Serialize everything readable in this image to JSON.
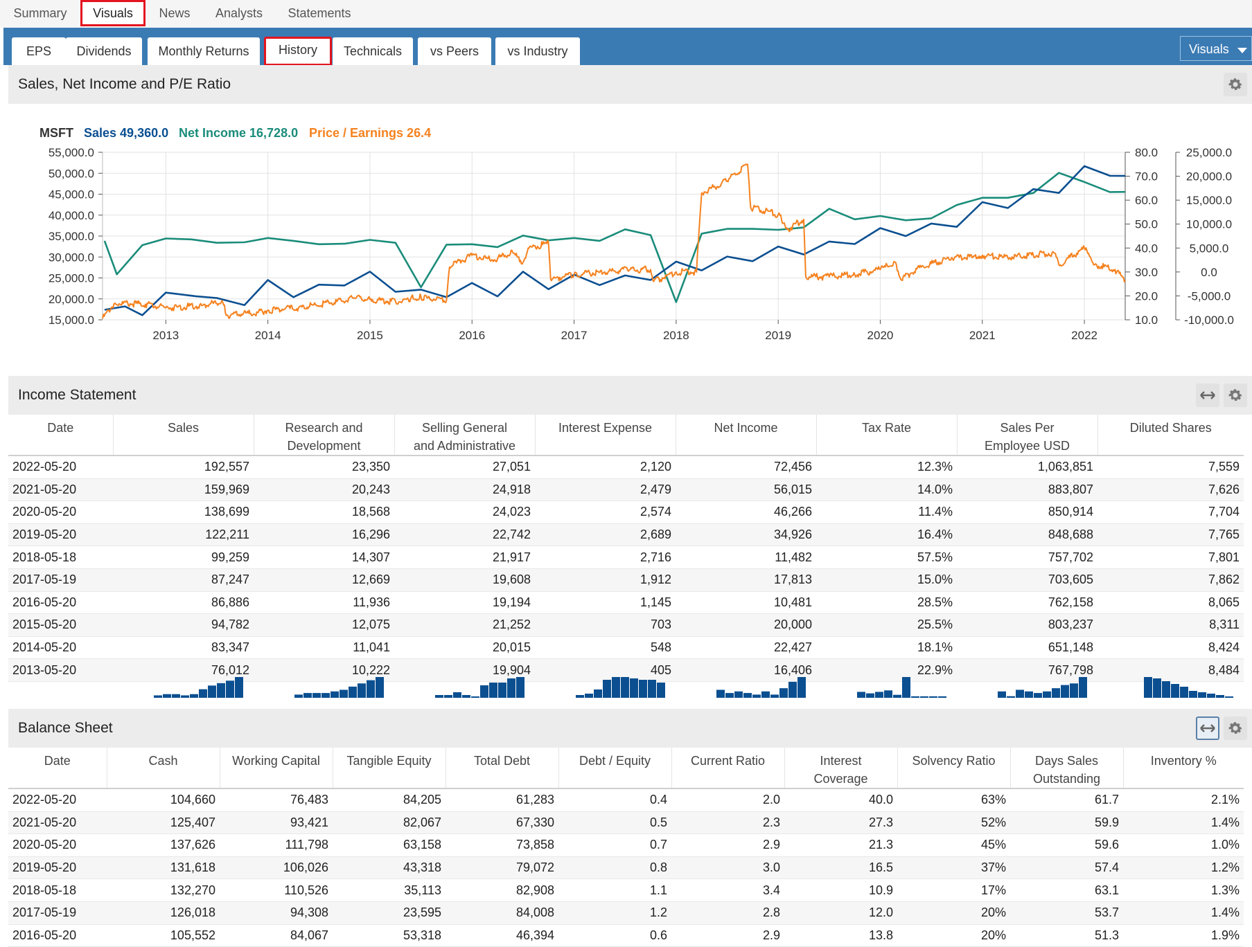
{
  "top_nav": [
    "Summary",
    "Visuals",
    "News",
    "Analysts",
    "Statements"
  ],
  "sub_tabs": [
    "EPS",
    "Dividends",
    "Monthly Returns",
    "History",
    "Technicals",
    "vs Peers",
    "vs Industry"
  ],
  "visuals_dropdown": "Visuals",
  "chart_section": {
    "title": "Sales, Net Income and P/E Ratio"
  },
  "legend": {
    "ticker": "MSFT",
    "sales": "Sales 49,360.0",
    "net_income": "Net Income 16,728.0",
    "pe": "Price / Earnings 26.4"
  },
  "colors": {
    "sales": "#0b4f91",
    "net_income": "#1a8c7a",
    "pe": "#f5821f",
    "accent": "#3b7bb4",
    "highlight": "#e3141f"
  },
  "chart_data": {
    "type": "line",
    "x_ticks": [
      "2013",
      "2014",
      "2015",
      "2016",
      "2017",
      "2018",
      "2019",
      "2020",
      "2021",
      "2022"
    ],
    "y_left_ticks": [
      "55,000.0",
      "50,000.0",
      "45,000.0",
      "40,000.0",
      "35,000.0",
      "30,000.0",
      "25,000.0",
      "20,000.0",
      "15,000.0"
    ],
    "y_right1_ticks": [
      "80.0",
      "70.0",
      "60.0",
      "50.0",
      "40.0",
      "30.0",
      "20.0",
      "10.0"
    ],
    "y_right2_ticks": [
      "25,000.0",
      "20,000.0",
      "15,000.0",
      "10,000.0",
      "5,000.0",
      "0.0",
      "-5,000.0",
      "-10,000.0"
    ],
    "ylim_left": [
      15000,
      55000
    ],
    "ylim_pe": [
      10,
      80
    ],
    "ylim_net": [
      -10000,
      25000
    ],
    "xlim": [
      2012.38,
      2022.4
    ],
    "sales": [
      [
        2012.4,
        17400
      ],
      [
        2012.6,
        18200
      ],
      [
        2012.77,
        16100
      ],
      [
        2013.0,
        21500
      ],
      [
        2013.3,
        20600
      ],
      [
        2013.5,
        20200
      ],
      [
        2013.77,
        18500
      ],
      [
        2014.0,
        24500
      ],
      [
        2014.25,
        20400
      ],
      [
        2014.5,
        23400
      ],
      [
        2014.75,
        23200
      ],
      [
        2015.0,
        26500
      ],
      [
        2015.25,
        21700
      ],
      [
        2015.5,
        22200
      ],
      [
        2015.75,
        20400
      ],
      [
        2016.0,
        23800
      ],
      [
        2016.25,
        20600
      ],
      [
        2016.5,
        26500
      ],
      [
        2016.75,
        22300
      ],
      [
        2017.0,
        25800
      ],
      [
        2017.25,
        23300
      ],
      [
        2017.5,
        25600
      ],
      [
        2017.75,
        24500
      ],
      [
        2018.0,
        28900
      ],
      [
        2018.25,
        26800
      ],
      [
        2018.5,
        30100
      ],
      [
        2018.75,
        29000
      ],
      [
        2019.0,
        32500
      ],
      [
        2019.25,
        30600
      ],
      [
        2019.5,
        33700
      ],
      [
        2019.75,
        33100
      ],
      [
        2020.0,
        36900
      ],
      [
        2020.25,
        35000
      ],
      [
        2020.5,
        38000
      ],
      [
        2020.75,
        37200
      ],
      [
        2021.0,
        43100
      ],
      [
        2021.25,
        41700
      ],
      [
        2021.5,
        46200
      ],
      [
        2021.75,
        45300
      ],
      [
        2022.0,
        51700
      ],
      [
        2022.25,
        49400
      ],
      [
        2022.4,
        49360
      ]
    ],
    "net_income": [
      [
        2012.4,
        6500
      ],
      [
        2012.52,
        -500
      ],
      [
        2012.77,
        5600
      ],
      [
        2013.0,
        7000
      ],
      [
        2013.25,
        6800
      ],
      [
        2013.5,
        6100
      ],
      [
        2013.77,
        6200
      ],
      [
        2014.0,
        7100
      ],
      [
        2014.25,
        6500
      ],
      [
        2014.5,
        5800
      ],
      [
        2014.75,
        5900
      ],
      [
        2015.0,
        6700
      ],
      [
        2015.25,
        6100
      ],
      [
        2015.5,
        -3200
      ],
      [
        2015.75,
        5700
      ],
      [
        2016.0,
        5800
      ],
      [
        2016.25,
        5200
      ],
      [
        2016.5,
        7600
      ],
      [
        2016.75,
        6600
      ],
      [
        2017.0,
        7100
      ],
      [
        2017.25,
        6500
      ],
      [
        2017.5,
        8900
      ],
      [
        2017.75,
        7700
      ],
      [
        2018.0,
        -6300
      ],
      [
        2018.25,
        8000
      ],
      [
        2018.5,
        9000
      ],
      [
        2018.75,
        9000
      ],
      [
        2019.0,
        8800
      ],
      [
        2019.25,
        9300
      ],
      [
        2019.5,
        13200
      ],
      [
        2019.75,
        11000
      ],
      [
        2020.0,
        11700
      ],
      [
        2020.25,
        10800
      ],
      [
        2020.5,
        11200
      ],
      [
        2020.75,
        14000
      ],
      [
        2021.0,
        15500
      ],
      [
        2021.25,
        15500
      ],
      [
        2021.5,
        16500
      ],
      [
        2021.75,
        20700
      ],
      [
        2022.0,
        18800
      ],
      [
        2022.25,
        16700
      ],
      [
        2022.4,
        16728
      ]
    ],
    "pe": [
      [
        2012.38,
        10.5
      ],
      [
        2012.5,
        17
      ],
      [
        2012.8,
        16.5
      ],
      [
        2013.0,
        15
      ],
      [
        2013.4,
        16
      ],
      [
        2013.55,
        18
      ],
      [
        2013.6,
        12
      ],
      [
        2013.9,
        13
      ],
      [
        2014.0,
        14
      ],
      [
        2014.3,
        15
      ],
      [
        2014.6,
        17
      ],
      [
        2014.85,
        19
      ],
      [
        2015.0,
        18.5
      ],
      [
        2015.3,
        17.5
      ],
      [
        2015.4,
        19
      ],
      [
        2015.5,
        19.5
      ],
      [
        2015.75,
        18
      ],
      [
        2015.78,
        32
      ],
      [
        2016.0,
        37
      ],
      [
        2016.2,
        35
      ],
      [
        2016.4,
        38
      ],
      [
        2016.5,
        34
      ],
      [
        2016.55,
        40
      ],
      [
        2016.75,
        42
      ],
      [
        2016.77,
        27
      ],
      [
        2017.0,
        29
      ],
      [
        2017.3,
        30
      ],
      [
        2017.55,
        31
      ],
      [
        2017.75,
        31
      ],
      [
        2017.78,
        26
      ],
      [
        2018.0,
        30
      ],
      [
        2018.2,
        30
      ],
      [
        2018.25,
        63
      ],
      [
        2018.5,
        68
      ],
      [
        2018.7,
        75
      ],
      [
        2018.73,
        57
      ],
      [
        2019.0,
        54
      ],
      [
        2019.1,
        48
      ],
      [
        2019.25,
        52
      ],
      [
        2019.27,
        28
      ],
      [
        2019.5,
        28
      ],
      [
        2019.75,
        29
      ],
      [
        2020.0,
        31
      ],
      [
        2020.15,
        34
      ],
      [
        2020.2,
        27
      ],
      [
        2020.4,
        32
      ],
      [
        2020.7,
        36
      ],
      [
        2020.9,
        36
      ],
      [
        2021.0,
        37
      ],
      [
        2021.2,
        36
      ],
      [
        2021.5,
        37
      ],
      [
        2021.7,
        38
      ],
      [
        2021.75,
        33
      ],
      [
        2022.0,
        40
      ],
      [
        2022.1,
        33
      ],
      [
        2022.3,
        31
      ],
      [
        2022.4,
        26.4
      ]
    ]
  },
  "income_statement": {
    "title": "Income Statement",
    "columns": [
      [
        "Date"
      ],
      [
        "Sales"
      ],
      [
        "Research and",
        "Development"
      ],
      [
        "Selling General",
        "and Administrative"
      ],
      [
        "Interest Expense"
      ],
      [
        "Net Income"
      ],
      [
        "Tax Rate"
      ],
      [
        "Sales Per",
        "Employee USD"
      ],
      [
        "Diluted Shares"
      ]
    ],
    "rows": [
      [
        "2022-05-20",
        "192,557",
        "23,350",
        "27,051",
        "2,120",
        "72,456",
        "12.3%",
        "1,063,851",
        "7,559"
      ],
      [
        "2021-05-20",
        "159,969",
        "20,243",
        "24,918",
        "2,479",
        "56,015",
        "14.0%",
        "883,807",
        "7,626"
      ],
      [
        "2020-05-20",
        "138,699",
        "18,568",
        "24,023",
        "2,574",
        "46,266",
        "11.4%",
        "850,914",
        "7,704"
      ],
      [
        "2019-05-20",
        "122,211",
        "16,296",
        "22,742",
        "2,689",
        "34,926",
        "16.4%",
        "848,688",
        "7,765"
      ],
      [
        "2018-05-18",
        "99,259",
        "14,307",
        "21,917",
        "2,716",
        "11,482",
        "57.5%",
        "757,702",
        "7,801"
      ],
      [
        "2017-05-19",
        "87,247",
        "12,669",
        "19,608",
        "1,912",
        "17,813",
        "15.0%",
        "703,605",
        "7,862"
      ],
      [
        "2016-05-20",
        "86,886",
        "11,936",
        "19,194",
        "1,145",
        "10,481",
        "28.5%",
        "762,158",
        "8,065"
      ],
      [
        "2015-05-20",
        "94,782",
        "12,075",
        "21,252",
        "703",
        "20,000",
        "25.5%",
        "803,237",
        "8,311"
      ],
      [
        "2014-05-20",
        "83,347",
        "11,041",
        "20,015",
        "548",
        "22,427",
        "18.1%",
        "651,148",
        "8,424"
      ],
      [
        "2013-05-20",
        "76,012",
        "10,222",
        "19,904",
        "405",
        "16,406",
        "22.9%",
        "767,798",
        "8,484"
      ]
    ],
    "sparks": [
      [
        2,
        3,
        3,
        2,
        3,
        7,
        10,
        12,
        14,
        17
      ],
      [
        2,
        3,
        3,
        3,
        4,
        5,
        7,
        9,
        11,
        13
      ],
      [
        2,
        2,
        4,
        2,
        1,
        9,
        11,
        11,
        14,
        15
      ],
      [
        2,
        3,
        6,
        13,
        15,
        15,
        14,
        13,
        13,
        11
      ],
      [
        5,
        3,
        4,
        3,
        2,
        4,
        2,
        6,
        10,
        13
      ],
      [
        4,
        3,
        4,
        5,
        2,
        14,
        1,
        1,
        1,
        1
      ],
      [
        4,
        1,
        5,
        4,
        3,
        4,
        6,
        8,
        9,
        13
      ],
      [
        15,
        14,
        12,
        10,
        8,
        5,
        4,
        3,
        2,
        1
      ]
    ]
  },
  "balance_sheet": {
    "title": "Balance Sheet",
    "columns": [
      [
        "Date"
      ],
      [
        "Cash"
      ],
      [
        "Working Capital"
      ],
      [
        "Tangible Equity"
      ],
      [
        "Total Debt"
      ],
      [
        "Debt / Equity"
      ],
      [
        "Current Ratio"
      ],
      [
        "Interest",
        "Coverage"
      ],
      [
        "Solvency Ratio"
      ],
      [
        "Days Sales",
        "Outstanding"
      ],
      [
        "Inventory %"
      ]
    ],
    "rows": [
      [
        "2022-05-20",
        "104,660",
        "76,483",
        "84,205",
        "61,283",
        "0.4",
        "2.0",
        "40.0",
        "63%",
        "61.7",
        "2.1%"
      ],
      [
        "2021-05-20",
        "125,407",
        "93,421",
        "82,067",
        "67,330",
        "0.5",
        "2.3",
        "27.3",
        "52%",
        "59.9",
        "1.4%"
      ],
      [
        "2020-05-20",
        "137,626",
        "111,798",
        "63,158",
        "73,858",
        "0.7",
        "2.9",
        "21.3",
        "45%",
        "59.6",
        "1.0%"
      ],
      [
        "2019-05-20",
        "131,618",
        "106,026",
        "43,318",
        "79,072",
        "0.8",
        "3.0",
        "16.5",
        "37%",
        "57.4",
        "1.2%"
      ],
      [
        "2018-05-18",
        "132,270",
        "110,526",
        "35,113",
        "82,908",
        "1.1",
        "3.4",
        "10.9",
        "17%",
        "63.1",
        "1.3%"
      ],
      [
        "2017-05-19",
        "126,018",
        "94,308",
        "23,595",
        "84,008",
        "1.2",
        "2.8",
        "12.0",
        "20%",
        "53.7",
        "1.4%"
      ],
      [
        "2016-05-20",
        "105,552",
        "84,067",
        "53,318",
        "46,394",
        "0.6",
        "2.9",
        "13.8",
        "20%",
        "51.3",
        "1.9%"
      ]
    ]
  }
}
